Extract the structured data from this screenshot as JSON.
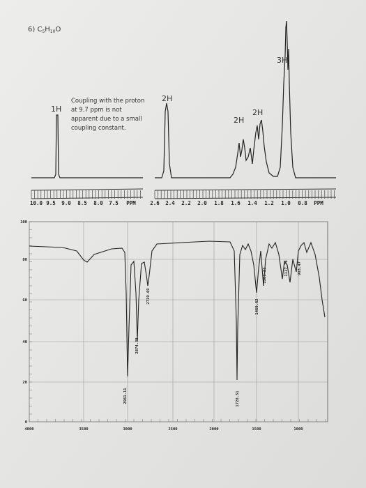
{
  "header": {
    "problem": "6)",
    "formula": [
      "C",
      "5",
      "H",
      "10",
      "O"
    ]
  },
  "nmr": {
    "integrations": [
      "1H",
      "2H",
      "2H",
      "2H",
      "3H"
    ],
    "note": [
      "Coupling with the proton",
      "at 9.7 ppm is not",
      "apparent due to a small",
      "coupling constant."
    ],
    "axis_left": [
      "10.0",
      "9.5",
      "9.0",
      "8.5",
      "8.0",
      "7.5",
      "PPM"
    ],
    "axis_right": [
      "2.6",
      "2.4",
      "2.2",
      "2.0",
      "1.8",
      "1.6",
      "1.4",
      "1.2",
      "1.0",
      "0.8",
      "PPM"
    ]
  },
  "ir": {
    "y_labels": [
      "100",
      "80",
      "60",
      "40",
      "20",
      "0"
    ],
    "x_labels": [
      "4000",
      "3500",
      "3000",
      "2500",
      "2000",
      "1500",
      "1000"
    ],
    "peak_labels": [
      "2961.11",
      "2874.38",
      "2719.69",
      "1728.51",
      "1460.62",
      "1381.21",
      "1117.78",
      "993.47"
    ]
  }
}
